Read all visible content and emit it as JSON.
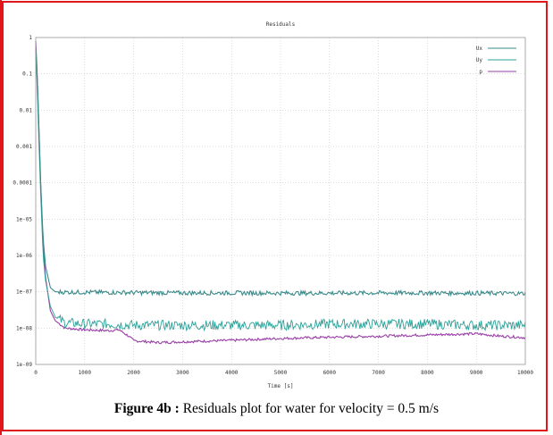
{
  "figure": {
    "caption_label": "Figure 4b :",
    "caption_text": " Residuals plot for water for velocity = 0.5 m/s",
    "border_color": "#e0161b"
  },
  "chart_data": {
    "type": "line",
    "title": "Residuals",
    "xlabel": "Time [s]",
    "ylabel": "",
    "yscale": "log",
    "xlim": [
      0,
      10000
    ],
    "ylim": [
      1e-09,
      1
    ],
    "x_ticks": [
      "0",
      "1000",
      "2000",
      "3000",
      "4000",
      "5000",
      "6000",
      "7000",
      "8000",
      "9000",
      "10000"
    ],
    "y_ticks": [
      "1",
      "0.1",
      "0.01",
      "0.001",
      "0.0001",
      "1e-05",
      "1e-06",
      "1e-07",
      "1e-08",
      "1e-09"
    ],
    "grid": true,
    "legend_position": "top-right",
    "series": [
      {
        "name": "Ux",
        "color": "#3a8a8a",
        "x": [
          0,
          30,
          60,
          100,
          150,
          200,
          300,
          400,
          600,
          1000,
          2000,
          3000,
          4000,
          5000,
          6000,
          7000,
          8000,
          9000,
          10000
        ],
        "y": [
          0.5,
          0.1,
          0.005,
          0.0001,
          3e-06,
          5e-07,
          1.3e-07,
          1e-07,
          9.8e-08,
          9.7e-08,
          9.5e-08,
          9.3e-08,
          9.3e-08,
          9.2e-08,
          9.2e-08,
          9.3e-08,
          9.3e-08,
          9.2e-08,
          9e-08
        ]
      },
      {
        "name": "Uy",
        "color": "#2aa198",
        "x": [
          0,
          30,
          60,
          100,
          150,
          200,
          300,
          400,
          600,
          1000,
          1500,
          2000,
          3000,
          4000,
          5000,
          6000,
          7000,
          8000,
          9000,
          10000
        ],
        "y": [
          0.3,
          0.05,
          0.002,
          5e-05,
          1e-06,
          2e-07,
          4e-08,
          2e-08,
          1.4e-08,
          1.3e-08,
          1.3e-08,
          1.2e-08,
          1.2e-08,
          1.2e-08,
          1.2e-08,
          1.3e-08,
          1.3e-08,
          1.3e-08,
          1.2e-08,
          1.2e-08
        ]
      },
      {
        "name": "p",
        "color": "#9a3fa8",
        "x": [
          0,
          30,
          60,
          100,
          150,
          200,
          300,
          400,
          600,
          1000,
          1500,
          1700,
          1900,
          2000,
          2500,
          3000,
          4000,
          5000,
          6000,
          7000,
          8000,
          9000,
          9500,
          10000
        ],
        "y": [
          0.8,
          0.1,
          0.005,
          0.0001,
          2e-06,
          2.5e-07,
          3e-08,
          1.6e-08,
          1e-08,
          9e-09,
          8.5e-09,
          9e-09,
          6e-09,
          4.5e-09,
          4e-09,
          4.2e-09,
          4.6e-09,
          5.2e-09,
          5.6e-09,
          6e-09,
          6.5e-09,
          7e-09,
          6e-09,
          5.5e-09
        ]
      }
    ]
  }
}
